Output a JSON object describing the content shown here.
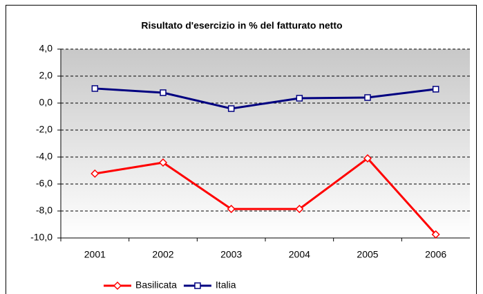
{
  "chart_data": {
    "type": "line",
    "title": "Risultato d'esercizio in  % del fatturato netto",
    "categories": [
      "2001",
      "2002",
      "2003",
      "2004",
      "2005",
      "2006"
    ],
    "series": [
      {
        "name": "Basilicata",
        "color": "#ff0000",
        "marker": "diamond",
        "values": [
          -5.23,
          -4.41,
          -7.85,
          -7.85,
          -4.1,
          -9.74
        ]
      },
      {
        "name": "Italia",
        "color": "#000080",
        "marker": "square",
        "values": [
          1.08,
          0.77,
          -0.41,
          0.36,
          0.41,
          1.03
        ]
      }
    ],
    "ylim": [
      -10,
      4
    ],
    "yticks": [
      {
        "value": -10,
        "label": "-10,0"
      },
      {
        "value": -8,
        "label": "-8,0"
      },
      {
        "value": -6,
        "label": "-6,0"
      },
      {
        "value": -4,
        "label": "-4,0"
      },
      {
        "value": -2,
        "label": "-2,0"
      },
      {
        "value": 0,
        "label": "0,0"
      },
      {
        "value": 2,
        "label": "2,0"
      },
      {
        "value": 4,
        "label": "4,0"
      }
    ],
    "grid": true,
    "legend": "bottom"
  }
}
